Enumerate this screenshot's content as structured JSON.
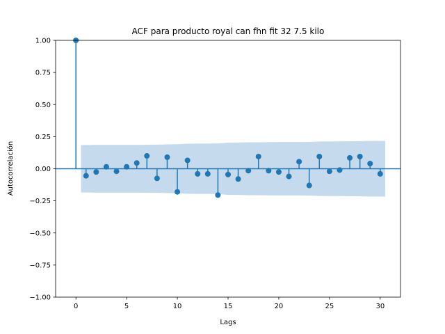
{
  "chart_data": {
    "type": "stem",
    "title": "ACF para producto royal can fhn fit 32 7.5 kilo",
    "xlabel": "Lags",
    "ylabel": "Autocorrelación",
    "xlim": [
      -2,
      32
    ],
    "ylim": [
      -1.0,
      1.0
    ],
    "xticks": [
      0,
      5,
      10,
      15,
      20,
      25,
      30
    ],
    "xtick_labels": [
      "0",
      "5",
      "10",
      "15",
      "20",
      "25",
      "30"
    ],
    "yticks": [
      -1.0,
      -0.75,
      -0.5,
      -0.25,
      0.0,
      0.25,
      0.5,
      0.75,
      1.0
    ],
    "ytick_labels": [
      "−1.00",
      "−0.75",
      "−0.50",
      "−0.25",
      "0.00",
      "0.25",
      "0.50",
      "0.75",
      "1.00"
    ],
    "lags": [
      0,
      1,
      2,
      3,
      4,
      5,
      6,
      7,
      8,
      9,
      10,
      11,
      12,
      13,
      14,
      15,
      16,
      17,
      18,
      19,
      20,
      21,
      22,
      23,
      24,
      25,
      26,
      27,
      28,
      29,
      30
    ],
    "values": [
      1.0,
      -0.055,
      -0.025,
      0.015,
      -0.02,
      0.015,
      0.045,
      0.1,
      -0.075,
      0.09,
      -0.18,
      0.065,
      -0.04,
      -0.04,
      -0.205,
      -0.045,
      -0.08,
      -0.015,
      0.095,
      -0.015,
      -0.025,
      -0.06,
      0.055,
      -0.13,
      0.095,
      -0.02,
      -0.01,
      0.085,
      0.095,
      0.04,
      -0.04
    ],
    "confidence_band": {
      "lags": [
        0.5,
        1,
        2,
        3,
        4,
        5,
        6,
        7,
        8,
        9,
        10,
        11,
        12,
        13,
        14,
        15,
        16,
        17,
        18,
        19,
        20,
        21,
        22,
        23,
        24,
        25,
        26,
        27,
        28,
        29,
        30,
        30.5
      ],
      "upper": [
        0.185,
        0.185,
        0.186,
        0.186,
        0.186,
        0.186,
        0.186,
        0.187,
        0.188,
        0.19,
        0.191,
        0.195,
        0.196,
        0.196,
        0.197,
        0.203,
        0.204,
        0.206,
        0.206,
        0.207,
        0.208,
        0.208,
        0.208,
        0.209,
        0.212,
        0.213,
        0.213,
        0.214,
        0.215,
        0.217,
        0.217,
        0.217
      ]
    },
    "colors": {
      "stem": "#1f77b4",
      "band": "#aecbe6",
      "band_opacity": 0.7
    },
    "grid": false
  }
}
